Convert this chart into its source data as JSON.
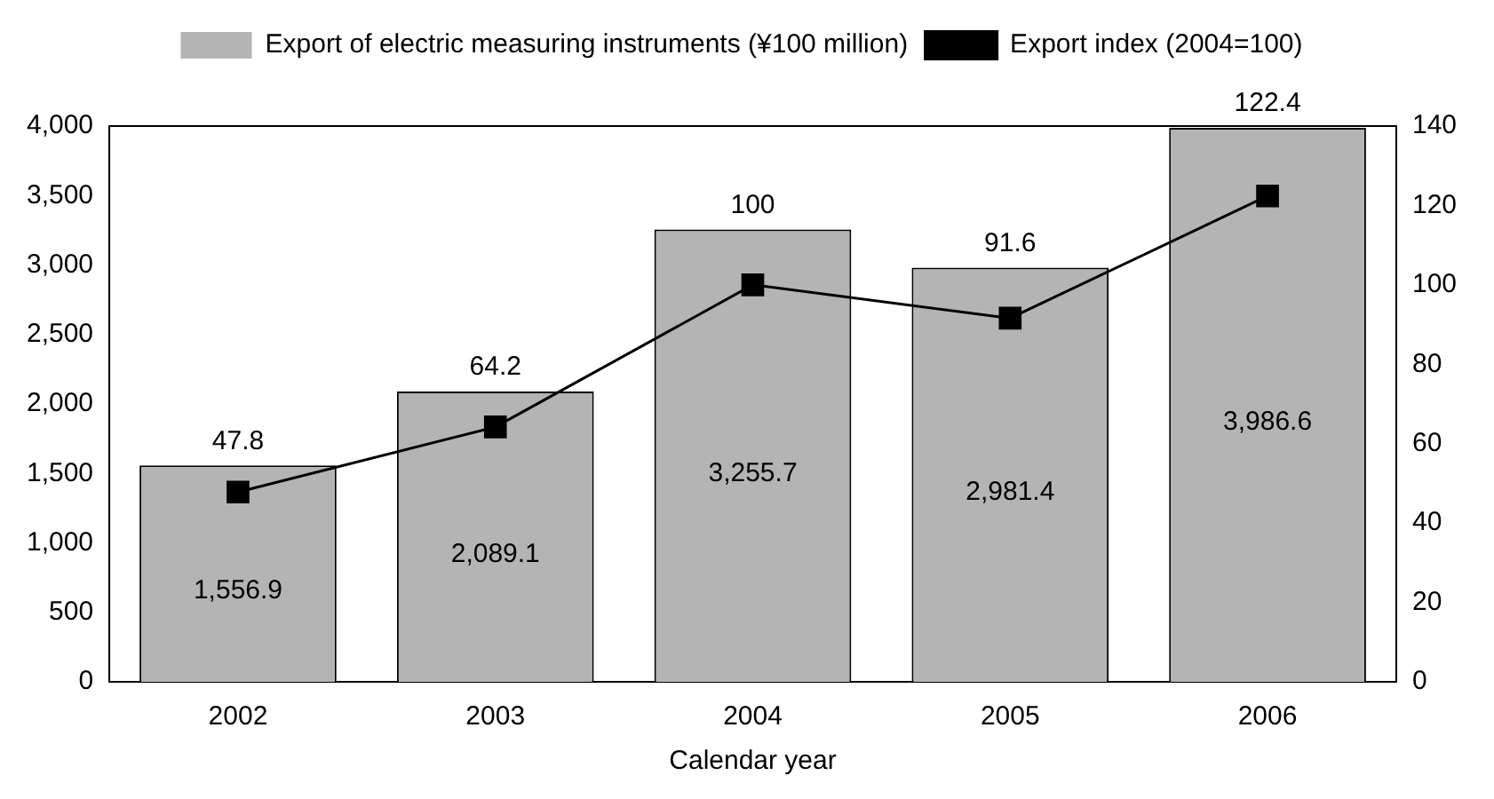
{
  "chart_data": {
    "type": "bar",
    "categories": [
      "2002",
      "2003",
      "2004",
      "2005",
      "2006"
    ],
    "xlabel": "Calendar year",
    "series": [
      {
        "name": "Export of electric measuring instruments (¥100 million)",
        "color": "#b4b4b4",
        "values": [
          1556.9,
          2089.1,
          3255.7,
          2981.4,
          3986.6
        ],
        "value_labels": [
          "1,556.9",
          "2,089.1",
          "3,255.7",
          "2,981.4",
          "3,986.6"
        ]
      },
      {
        "name": "Export index (2004=100)",
        "type": "line",
        "axis": "y2",
        "color": "#000000",
        "values": [
          47.8,
          64.2,
          100,
          91.6,
          122.4
        ],
        "value_labels": [
          "47.8",
          "64.2",
          "100",
          "91.6",
          "122.4"
        ]
      }
    ],
    "ylim": [
      0,
      4000
    ],
    "yticks": [
      0,
      500,
      {
        "value": 1000,
        "label": "1,000"
      },
      {
        "value": 1500,
        "label": "1,500"
      },
      {
        "value": 2000,
        "label": "2,000"
      },
      {
        "value": 2500,
        "label": "2,500"
      },
      {
        "value": 3000,
        "label": "3,000"
      },
      {
        "value": 3500,
        "label": "3,500"
      },
      {
        "value": 4000,
        "label": "4,000"
      }
    ],
    "y2lim": [
      0,
      140
    ],
    "y2ticks": [
      0,
      20,
      40,
      60,
      80,
      100,
      120,
      140
    ],
    "grid": false,
    "legend": "top",
    "marker": "square",
    "line_style": "solid"
  }
}
